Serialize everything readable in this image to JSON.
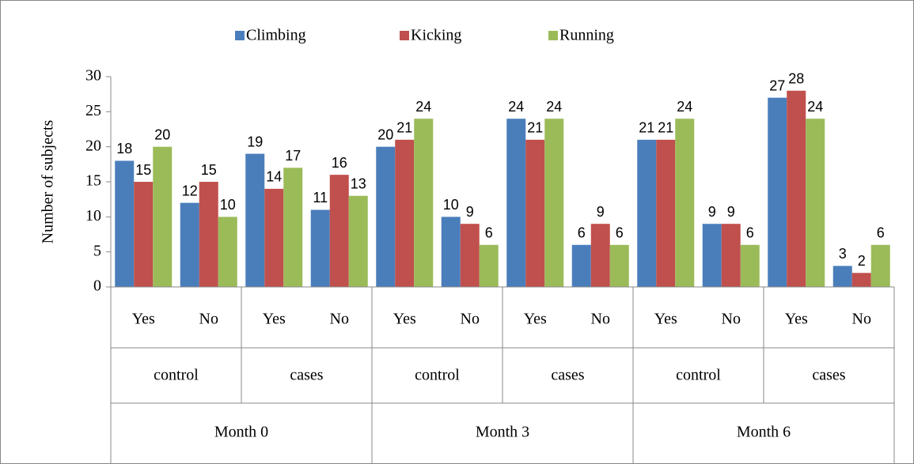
{
  "chart_data": {
    "type": "bar",
    "y_label": "Number of subjects",
    "categories": [
      "Yes",
      "No",
      "Yes",
      "No",
      "Yes",
      "No",
      "Yes",
      "No",
      "Yes",
      "No",
      "Yes",
      "No"
    ],
    "groups": [
      "control",
      "cases",
      "control",
      "cases",
      "control",
      "cases"
    ],
    "supergroups": [
      "Month 0",
      "Month 3",
      "Month 6"
    ],
    "series": [
      {
        "name": "Climbing",
        "color": "#4a7ebb",
        "values": [
          18,
          12,
          19,
          11,
          20,
          10,
          24,
          6,
          21,
          9,
          27,
          3
        ]
      },
      {
        "name": "Kicking",
        "color": "#c0504d",
        "values": [
          15,
          15,
          14,
          16,
          21,
          9,
          21,
          9,
          21,
          9,
          28,
          2
        ]
      },
      {
        "name": "Running",
        "color": "#9bbb59",
        "values": [
          20,
          10,
          17,
          13,
          24,
          6,
          24,
          6,
          24,
          6,
          24,
          6
        ]
      }
    ],
    "ylim": [
      0,
      30
    ],
    "yticks": [
      0,
      5,
      10,
      15,
      20,
      25,
      30
    ],
    "grid": false,
    "legend": "top"
  }
}
